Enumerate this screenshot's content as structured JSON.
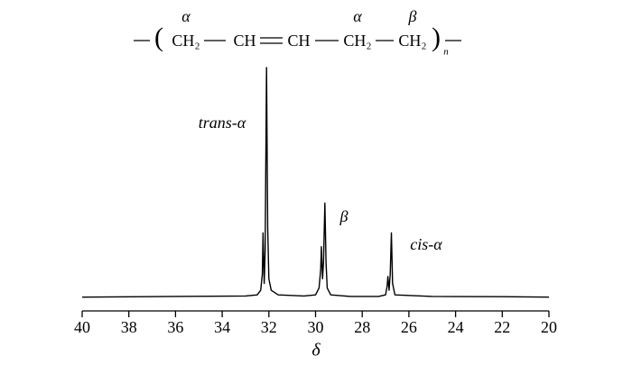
{
  "chart_data": {
    "type": "line",
    "x_label": "δ",
    "formula": {
      "groups": [
        "CH₂",
        "CH",
        "CH",
        "CH₂",
        "CH₂"
      ],
      "labels": [
        "α",
        "α",
        "β"
      ],
      "repeat": "n"
    },
    "annotations": [
      "trans-α",
      "β",
      "cis-α"
    ],
    "x": [
      40,
      36,
      33,
      32.5,
      32.35,
      32.28,
      32.25,
      32.2,
      32.16,
      32.1,
      32.05,
      32.0,
      31.9,
      31.6,
      30.5,
      30.0,
      29.85,
      29.78,
      29.75,
      29.7,
      29.66,
      29.6,
      29.55,
      29.5,
      29.35,
      28.5,
      27.3,
      27.0,
      26.93,
      26.9,
      26.85,
      26.8,
      26.75,
      26.7,
      26.6,
      25,
      22,
      20
    ],
    "series": [
      {
        "color": "#000000",
        "values": [
          0,
          0.3,
          0.5,
          1,
          3,
          10,
          28,
          6,
          20,
          100,
          30,
          8,
          3,
          1,
          0.5,
          1,
          4,
          12,
          22,
          8,
          15,
          41,
          15,
          4,
          1,
          0.3,
          0.3,
          1,
          5,
          9,
          3,
          10,
          28,
          6,
          1,
          0.3,
          0.2,
          0
        ]
      }
    ],
    "xlim": [
      40,
      20
    ],
    "ylim": [
      -6,
      100
    ],
    "xticks": [
      40,
      38,
      36,
      34,
      32,
      30,
      28,
      26,
      24,
      22,
      20
    ]
  }
}
